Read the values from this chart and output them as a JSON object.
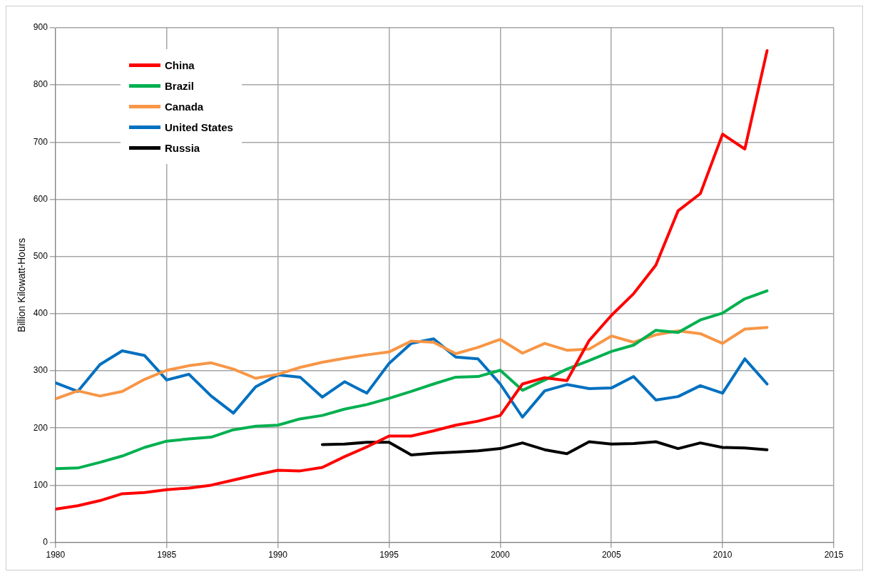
{
  "chart_data": {
    "type": "line",
    "ylabel": "Billion Kilowatt-Hours",
    "x": [
      1980,
      1981,
      1982,
      1983,
      1984,
      1985,
      1986,
      1987,
      1988,
      1989,
      1990,
      1991,
      1992,
      1993,
      1994,
      1995,
      1996,
      1997,
      1998,
      1999,
      2000,
      2001,
      2002,
      2003,
      2004,
      2005,
      2006,
      2007,
      2008,
      2009,
      2010,
      2011,
      2012
    ],
    "series": [
      {
        "name": "China",
        "color": "#ff0000",
        "values": [
          58,
          64,
          73,
          85,
          87,
          92,
          95,
          100,
          109,
          118,
          126,
          125,
          131,
          150,
          167,
          186,
          186,
          195,
          205,
          212,
          222,
          277,
          288,
          283,
          353,
          397,
          435,
          485,
          580,
          610,
          714,
          688,
          860
        ]
      },
      {
        "name": "Brazil",
        "color": "#00b050",
        "values": [
          129,
          130,
          140,
          151,
          166,
          177,
          181,
          184,
          197,
          203,
          205,
          216,
          222,
          233,
          241,
          252,
          264,
          277,
          289,
          290,
          301,
          266,
          284,
          303,
          318,
          334,
          345,
          371,
          367,
          389,
          401,
          426,
          440
        ]
      },
      {
        "name": "Canada",
        "color": "#f79646",
        "values": [
          251,
          265,
          256,
          264,
          285,
          301,
          309,
          314,
          303,
          287,
          294,
          306,
          315,
          322,
          328,
          333,
          352,
          350,
          330,
          341,
          355,
          331,
          348,
          336,
          338,
          361,
          350,
          363,
          370,
          365,
          348,
          373,
          376
        ]
      },
      {
        "name": "United States",
        "color": "#0070c0",
        "values": [
          279,
          264,
          311,
          335,
          327,
          284,
          294,
          256,
          226,
          272,
          293,
          289,
          254,
          281,
          261,
          313,
          348,
          356,
          324,
          321,
          277,
          219,
          265,
          276,
          269,
          270,
          290,
          249,
          255,
          274,
          261,
          321,
          277
        ]
      },
      {
        "name": "Russia",
        "color": "#000000",
        "values": [
          null,
          null,
          null,
          null,
          null,
          null,
          null,
          null,
          null,
          null,
          null,
          null,
          171,
          172,
          175,
          175,
          153,
          156,
          158,
          160,
          164,
          174,
          162,
          155,
          176,
          172,
          173,
          176,
          164,
          174,
          166,
          165,
          162
        ]
      }
    ],
    "xlim": [
      1980,
      2015
    ],
    "xticks": [
      1980,
      1985,
      1990,
      1995,
      2000,
      2005,
      2010,
      2015
    ],
    "ylim": [
      0,
      900
    ],
    "yticks": [
      0,
      100,
      200,
      300,
      400,
      500,
      600,
      700,
      800,
      900
    ],
    "grid": true,
    "legend": "top left",
    "marker": "none",
    "line_style": "solid"
  }
}
